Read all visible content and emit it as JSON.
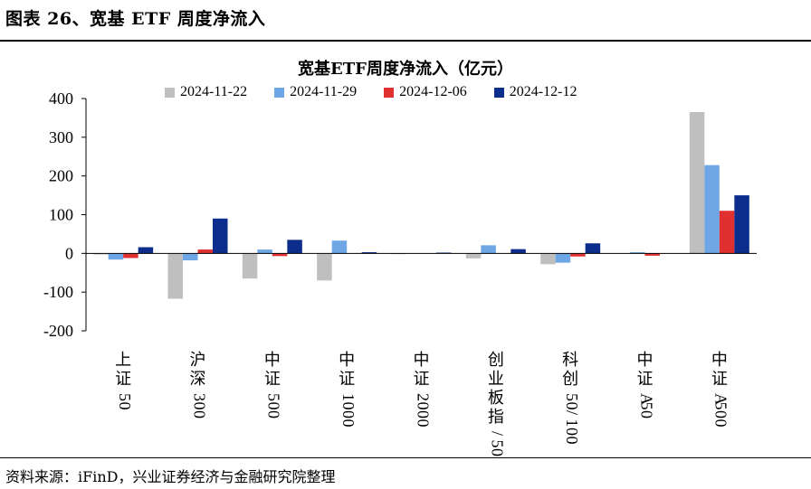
{
  "figure_title": "图表 26、宽基 ETF 周度净流入",
  "source": "资料来源：iFinD，兴业证券经济与金融研究院整理",
  "chart_data": {
    "type": "bar",
    "title": "宽基ETF周度净流入（亿元）",
    "xlabel": "",
    "ylabel": "",
    "ylim": [
      -200,
      400
    ],
    "yticks": [
      400,
      300,
      200,
      100,
      0,
      -100,
      -200
    ],
    "ytick_labels": [
      "400",
      "300",
      "200",
      "100",
      "0",
      "-100",
      "-200"
    ],
    "grid": false,
    "legend_position": "top",
    "categories": [
      "上证50",
      "沪深300",
      "中证500",
      "中证1000",
      "中证2000",
      "创业板指/50",
      "科创50/100",
      "中证A50",
      "中证A500"
    ],
    "series": [
      {
        "name": "2024-11-22",
        "color": "#bfbfbf",
        "values": [
          -3,
          -117,
          -65,
          -70,
          -2,
          -13,
          -28,
          0,
          365
        ]
      },
      {
        "name": "2024-11-29",
        "color": "#6ea6e6",
        "values": [
          -16,
          -18,
          10,
          33,
          0,
          21,
          -24,
          3,
          228
        ]
      },
      {
        "name": "2024-12-06",
        "color": "#e03030",
        "values": [
          -12,
          10,
          -7,
          0,
          0,
          0,
          -8,
          -6,
          110
        ]
      },
      {
        "name": "2024-12-12",
        "color": "#0c2d8c",
        "values": [
          16,
          90,
          35,
          3,
          2,
          11,
          26,
          0,
          150
        ]
      }
    ]
  }
}
